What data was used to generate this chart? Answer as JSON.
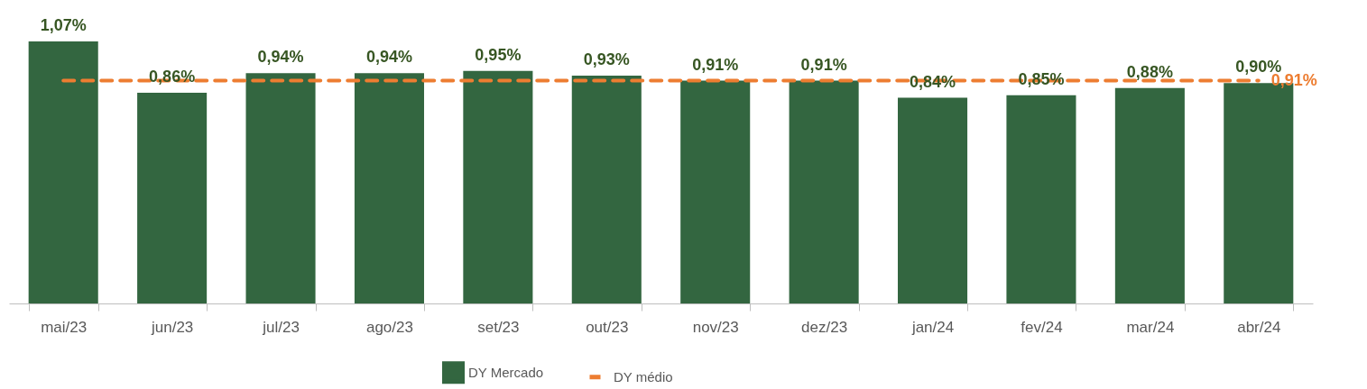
{
  "chart_data": {
    "type": "bar",
    "categories": [
      "mai/23",
      "jun/23",
      "jul/23",
      "ago/23",
      "set/23",
      "out/23",
      "nov/23",
      "dez/23",
      "jan/24",
      "fev/24",
      "mar/24",
      "abr/24"
    ],
    "series": [
      {
        "name": "DY Mercado",
        "color": "#336640",
        "values": [
          1.07,
          0.86,
          0.94,
          0.94,
          0.95,
          0.93,
          0.91,
          0.91,
          0.84,
          0.85,
          0.88,
          0.9
        ],
        "value_labels": [
          "1,07%",
          "0,86%",
          "0,94%",
          "0,94%",
          "0,95%",
          "0,93%",
          "0,91%",
          "0,91%",
          "0,84%",
          "0,85%",
          "0,88%",
          "0,90%"
        ]
      },
      {
        "name": "DY médio",
        "type": "line",
        "color": "#ed7d31",
        "line_style": "dashed",
        "marker": "none",
        "values": [
          0.91,
          0.91,
          0.91,
          0.91,
          0.91,
          0.91,
          0.91,
          0.91,
          0.91,
          0.91,
          0.91,
          0.91
        ],
        "value_labels": [
          null,
          null,
          null,
          null,
          null,
          null,
          null,
          null,
          null,
          null,
          null,
          "0,91%"
        ]
      }
    ],
    "legend": "bottom",
    "grid": false
  }
}
